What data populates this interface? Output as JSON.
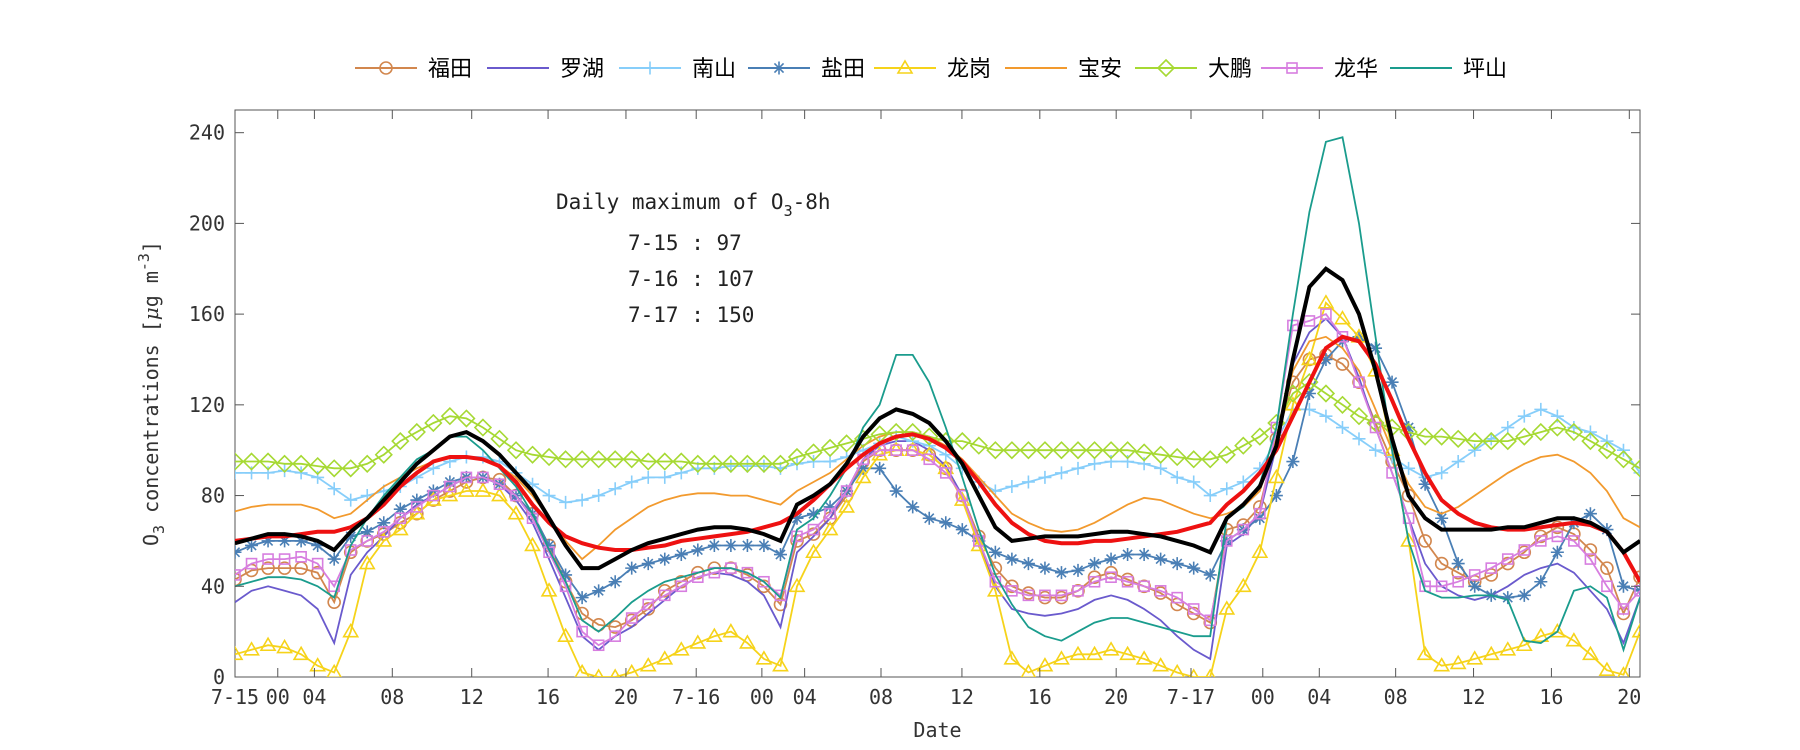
{
  "chart_data": {
    "type": "line",
    "xlabel": "Date",
    "ylabel_parts": {
      "pre": "O",
      "sub": "3",
      "mid": " concentrations [",
      "mu": "μ",
      "post": "g m",
      "sup": "-3",
      "end": "]"
    },
    "ylim": [
      0,
      250
    ],
    "yticks": [
      0,
      40,
      80,
      120,
      160,
      200,
      240
    ],
    "xlim": [
      0,
      71
    ],
    "xtick_labels": [
      "7-15",
      "00",
      "04",
      "08",
      "12",
      "16",
      "20",
      "7-16",
      "00",
      "04",
      "08",
      "12",
      "16",
      "20",
      "7-17",
      "00",
      "04",
      "08",
      "12",
      "16",
      "20"
    ],
    "grid": false,
    "legend_position": "top",
    "annotation": {
      "title_parts": {
        "pre": "Daily maximum of O",
        "sub": "3",
        "post": "-8h"
      },
      "lines": [
        "7-15 : 97",
        "7-16 : 107",
        "7-17 : 150"
      ]
    },
    "series": [
      {
        "name": "福田",
        "color": "#d2874e",
        "marker": "circle",
        "values": [
          43,
          47,
          48,
          48,
          48,
          46,
          33,
          55,
          60,
          63,
          68,
          72,
          78,
          82,
          86,
          88,
          87,
          80,
          72,
          58,
          42,
          28,
          23,
          22,
          25,
          30,
          38,
          42,
          46,
          48,
          48,
          45,
          40,
          32,
          60,
          63,
          70,
          80,
          95,
          100,
          100,
          100,
          98,
          92,
          80,
          62,
          48,
          40,
          37,
          35,
          35,
          38,
          44,
          46,
          43,
          40,
          37,
          32,
          28,
          24,
          65,
          67,
          75,
          105,
          130,
          140,
          142,
          138,
          130,
          112,
          95,
          80,
          60,
          50,
          46,
          42,
          45,
          50,
          55,
          62,
          66,
          63,
          56,
          48,
          28,
          44
        ]
      },
      {
        "name": "罗湖",
        "color": "#6a5acd",
        "marker": "none",
        "values": [
          33,
          38,
          40,
          38,
          36,
          30,
          15,
          45,
          55,
          62,
          70,
          76,
          80,
          84,
          88,
          88,
          85,
          78,
          68,
          52,
          35,
          18,
          12,
          18,
          22,
          28,
          34,
          40,
          44,
          46,
          45,
          42,
          36,
          22,
          55,
          62,
          70,
          82,
          96,
          102,
          104,
          104,
          100,
          93,
          80,
          60,
          40,
          30,
          28,
          27,
          28,
          30,
          34,
          36,
          34,
          30,
          25,
          18,
          12,
          8,
          58,
          63,
          72,
          102,
          138,
          152,
          158,
          150,
          132,
          110,
          90,
          70,
          50,
          40,
          36,
          34,
          36,
          40,
          45,
          48,
          50,
          46,
          38,
          30,
          15,
          35
        ]
      },
      {
        "name": "南山",
        "color": "#87cefa",
        "marker": "plus",
        "values": [
          90,
          90,
          90,
          91,
          90,
          88,
          83,
          78,
          80,
          82,
          84,
          88,
          92,
          95,
          97,
          97,
          95,
          90,
          85,
          80,
          77,
          78,
          80,
          83,
          86,
          88,
          88,
          90,
          92,
          92,
          93,
          93,
          93,
          92,
          94,
          95,
          95,
          97,
          100,
          103,
          106,
          104,
          102,
          98,
          92,
          86,
          82,
          84,
          86,
          88,
          90,
          92,
          94,
          95,
          95,
          94,
          92,
          88,
          86,
          80,
          83,
          86,
          92,
          104,
          118,
          118,
          115,
          110,
          105,
          100,
          97,
          92,
          88,
          90,
          95,
          100,
          105,
          110,
          115,
          118,
          115,
          110,
          108,
          104,
          100,
          90
        ]
      },
      {
        "name": "盐田",
        "color": "#4a7fb5",
        "marker": "star",
        "values": [
          55,
          58,
          60,
          60,
          60,
          58,
          52,
          62,
          64,
          68,
          74,
          78,
          82,
          86,
          88,
          88,
          85,
          80,
          72,
          58,
          45,
          35,
          38,
          42,
          48,
          50,
          52,
          54,
          56,
          58,
          58,
          58,
          58,
          54,
          70,
          72,
          75,
          82,
          92,
          92,
          82,
          75,
          70,
          68,
          65,
          60,
          55,
          52,
          50,
          48,
          46,
          47,
          50,
          52,
          54,
          54,
          52,
          50,
          48,
          45,
          60,
          65,
          70,
          80,
          95,
          125,
          140,
          148,
          150,
          145,
          130,
          110,
          85,
          70,
          50,
          40,
          36,
          35,
          36,
          42,
          55,
          68,
          72,
          65,
          40,
          38
        ]
      },
      {
        "name": "龙岗",
        "color": "#f6d31a",
        "marker": "triangle",
        "values": [
          10,
          12,
          14,
          13,
          10,
          5,
          2,
          20,
          50,
          60,
          65,
          72,
          78,
          80,
          82,
          82,
          80,
          72,
          58,
          38,
          18,
          2,
          0,
          0,
          2,
          5,
          8,
          12,
          15,
          18,
          20,
          15,
          8,
          5,
          40,
          55,
          65,
          75,
          88,
          98,
          100,
          100,
          98,
          92,
          78,
          58,
          38,
          8,
          2,
          5,
          8,
          10,
          10,
          12,
          10,
          8,
          5,
          2,
          0,
          0,
          30,
          40,
          55,
          88,
          120,
          140,
          165,
          158,
          150,
          135,
          100,
          60,
          10,
          5,
          6,
          8,
          10,
          12,
          14,
          18,
          20,
          16,
          10,
          3,
          1,
          20
        ]
      },
      {
        "name": "宝安",
        "color": "#f29a2e",
        "marker": "none",
        "values": [
          73,
          75,
          76,
          76,
          76,
          74,
          70,
          72,
          78,
          84,
          88,
          92,
          95,
          97,
          97,
          96,
          93,
          88,
          80,
          70,
          60,
          52,
          58,
          65,
          70,
          75,
          78,
          80,
          81,
          81,
          80,
          80,
          78,
          76,
          82,
          86,
          90,
          96,
          102,
          106,
          108,
          108,
          106,
          102,
          96,
          88,
          80,
          72,
          68,
          65,
          64,
          65,
          68,
          72,
          76,
          79,
          78,
          75,
          72,
          70,
          72,
          75,
          82,
          105,
          135,
          148,
          150,
          145,
          135,
          118,
          100,
          85,
          75,
          72,
          75,
          80,
          85,
          90,
          94,
          97,
          98,
          95,
          90,
          82,
          70,
          66
        ]
      },
      {
        "name": "大鹏",
        "color": "#a6d933",
        "marker": "diamond",
        "values": [
          95,
          95,
          95,
          94,
          94,
          93,
          92,
          92,
          94,
          98,
          104,
          108,
          112,
          115,
          114,
          110,
          105,
          100,
          98,
          97,
          96,
          96,
          96,
          96,
          96,
          95,
          95,
          95,
          94,
          94,
          94,
          94,
          94,
          94,
          97,
          99,
          101,
          103,
          105,
          107,
          108,
          108,
          106,
          104,
          104,
          102,
          100,
          100,
          100,
          100,
          100,
          100,
          100,
          100,
          100,
          99,
          98,
          97,
          96,
          96,
          98,
          102,
          106,
          112,
          125,
          130,
          125,
          120,
          115,
          112,
          110,
          108,
          106,
          106,
          105,
          104,
          104,
          104,
          106,
          108,
          110,
          108,
          104,
          100,
          96,
          92
        ]
      },
      {
        "name": "龙华",
        "color": "#d77ee0",
        "marker": "square",
        "values": [
          45,
          50,
          52,
          52,
          53,
          50,
          40,
          56,
          60,
          64,
          70,
          75,
          80,
          84,
          88,
          88,
          85,
          80,
          70,
          55,
          40,
          20,
          14,
          18,
          26,
          32,
          36,
          40,
          44,
          46,
          48,
          46,
          42,
          36,
          62,
          65,
          72,
          82,
          96,
          100,
          100,
          100,
          96,
          90,
          80,
          60,
          42,
          38,
          36,
          36,
          36,
          38,
          42,
          44,
          42,
          40,
          38,
          35,
          30,
          25,
          60,
          65,
          72,
          110,
          155,
          157,
          160,
          150,
          130,
          110,
          90,
          70,
          40,
          40,
          42,
          45,
          48,
          52,
          56,
          60,
          62,
          60,
          52,
          40,
          30,
          38
        ]
      },
      {
        "name": "坪山",
        "color": "#1a9c8d",
        "marker": "none",
        "values": [
          40,
          42,
          44,
          44,
          43,
          40,
          35,
          58,
          70,
          80,
          88,
          96,
          100,
          106,
          106,
          100,
          92,
          84,
          72,
          56,
          42,
          25,
          20,
          26,
          33,
          38,
          42,
          44,
          46,
          48,
          48,
          46,
          42,
          35,
          65,
          70,
          80,
          92,
          110,
          120,
          142,
          142,
          130,
          110,
          88,
          65,
          45,
          32,
          22,
          18,
          16,
          20,
          24,
          26,
          26,
          24,
          22,
          20,
          18,
          18,
          70,
          75,
          85,
          110,
          160,
          205,
          236,
          238,
          200,
          150,
          100,
          60,
          38,
          35,
          35,
          36,
          36,
          34,
          16,
          15,
          20,
          38,
          40,
          35,
          12,
          35
        ]
      }
    ],
    "average": {
      "color": "#000000",
      "values": [
        59,
        61,
        63,
        63,
        62,
        60,
        56,
        64,
        70,
        78,
        86,
        94,
        100,
        106,
        108,
        104,
        98,
        90,
        82,
        70,
        58,
        48,
        48,
        52,
        56,
        59,
        61,
        63,
        65,
        66,
        66,
        65,
        63,
        60,
        76,
        80,
        85,
        94,
        106,
        114,
        118,
        116,
        112,
        104,
        94,
        80,
        66,
        60,
        61,
        62,
        62,
        62,
        63,
        64,
        64,
        63,
        62,
        60,
        58,
        55,
        70,
        76,
        84,
        102,
        140,
        172,
        180,
        175,
        160,
        135,
        105,
        80,
        70,
        65,
        65,
        65,
        65,
        66,
        66,
        68,
        70,
        70,
        68,
        64,
        55,
        60
      ]
    },
    "red": {
      "color": "#ee1111",
      "values": [
        60,
        61,
        62,
        62,
        63,
        64,
        64,
        66,
        70,
        76,
        84,
        90,
        95,
        97,
        97,
        96,
        93,
        86,
        76,
        68,
        62,
        59,
        57,
        56,
        56,
        57,
        58,
        60,
        61,
        62,
        63,
        64,
        66,
        68,
        72,
        78,
        85,
        92,
        98,
        103,
        106,
        107,
        105,
        101,
        95,
        86,
        76,
        68,
        63,
        60,
        59,
        59,
        60,
        60,
        61,
        62,
        63,
        64,
        66,
        68,
        76,
        82,
        90,
        100,
        115,
        130,
        145,
        150,
        148,
        138,
        122,
        105,
        90,
        78,
        72,
        68,
        66,
        65,
        65,
        66,
        67,
        68,
        67,
        64,
        55,
        42
      ]
    }
  }
}
